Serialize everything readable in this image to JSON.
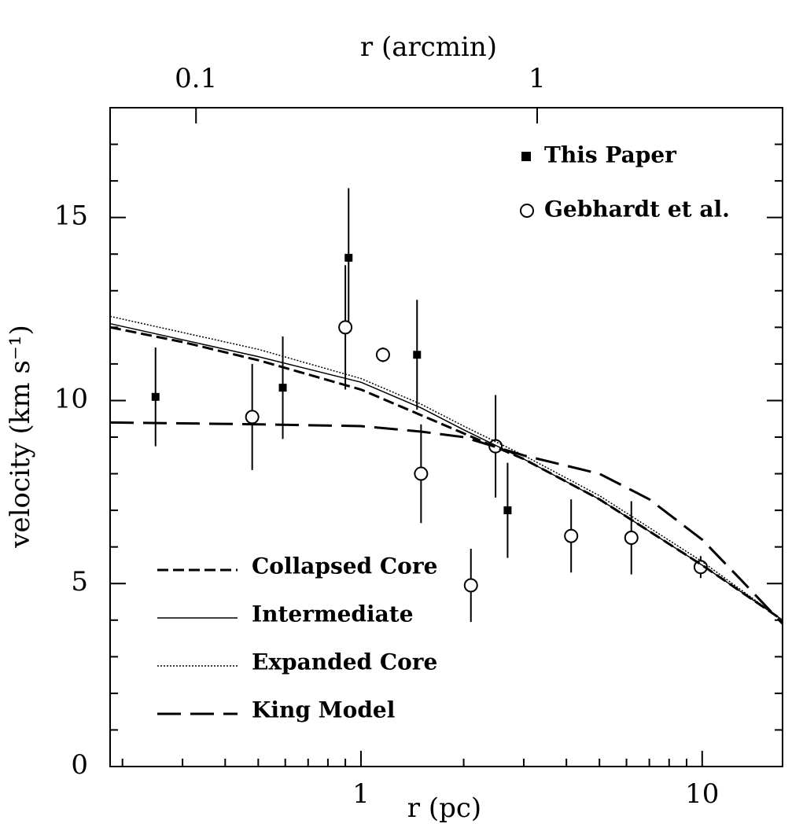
{
  "chart_data": {
    "type": "scatter",
    "x_label": "r (pc)",
    "x2_label": "r (arcmin)",
    "y_label": "velocity (km s⁻¹)",
    "xlim": [
      0.184,
      17.2
    ],
    "xscale": "log",
    "xticks": [
      1,
      10
    ],
    "xminorticks": [
      0.2,
      0.3,
      0.4,
      0.5,
      0.6,
      0.7,
      0.8,
      0.9,
      2,
      3,
      4,
      5,
      6,
      7,
      8,
      9
    ],
    "x2lim": [
      0.056,
      5.24
    ],
    "x2ticks": [
      0.1,
      1
    ],
    "ylim": [
      0,
      18
    ],
    "yticks": [
      0,
      5,
      10,
      15
    ],
    "yminorticks": [
      1,
      2,
      3,
      4,
      6,
      7,
      8,
      9,
      11,
      12,
      13,
      14,
      16,
      17
    ],
    "series": [
      {
        "name": "This Paper",
        "kind": "points",
        "marker": "square",
        "color": "#000",
        "x": [
          0.25,
          0.59,
          0.92,
          1.46,
          2.69
        ],
        "values": [
          10.1,
          10.35,
          13.9,
          11.25,
          7.0
        ],
        "errors": [
          1.35,
          1.4,
          1.9,
          1.5,
          1.3
        ]
      },
      {
        "name": "Gebhardt et al.",
        "kind": "points",
        "marker": "circle",
        "color": "#000",
        "x": [
          0.48,
          0.9,
          1.16,
          1.5,
          2.1,
          2.48,
          4.13,
          6.2,
          9.9
        ],
        "values": [
          9.55,
          12.0,
          11.25,
          8.0,
          4.95,
          8.75,
          6.3,
          6.25,
          5.45
        ],
        "errors": [
          1.45,
          1.7,
          0.2,
          1.35,
          1.0,
          1.4,
          1.0,
          1.0,
          0.3
        ]
      },
      {
        "name": "Collapsed Core",
        "kind": "line",
        "dash": "14 6",
        "width": 3,
        "color": "#000",
        "x": [
          0.184,
          0.3,
          0.5,
          1,
          1.5,
          2,
          3,
          5,
          10,
          17.2
        ],
        "values": [
          12.0,
          11.6,
          11.1,
          10.3,
          9.6,
          9.1,
          8.4,
          7.3,
          5.5,
          4.0
        ]
      },
      {
        "name": "Intermediate",
        "kind": "line",
        "dash": "none",
        "width": 1.5,
        "color": "#000",
        "x": [
          0.184,
          0.5,
          1,
          1.5,
          2,
          3,
          5,
          10,
          17.2
        ],
        "values": [
          12.1,
          11.2,
          10.5,
          9.8,
          9.2,
          8.4,
          7.3,
          5.5,
          4.0
        ]
      },
      {
        "name": "Expanded Core",
        "kind": "line",
        "dash": "2 2",
        "width": 1.5,
        "color": "#000",
        "x": [
          0.184,
          0.5,
          1,
          1.5,
          2,
          3,
          5,
          10,
          17.2
        ],
        "values": [
          12.3,
          11.4,
          10.6,
          9.9,
          9.3,
          8.5,
          7.4,
          5.6,
          4.0
        ]
      },
      {
        "name": "King Model",
        "kind": "line",
        "dash": "30 12",
        "width": 3,
        "color": "#000",
        "x": [
          0.184,
          0.5,
          1,
          1.5,
          2,
          3,
          5,
          7,
          10,
          13,
          17.2
        ],
        "values": [
          9.4,
          9.35,
          9.3,
          9.15,
          9.0,
          8.5,
          8.0,
          7.3,
          6.2,
          5.1,
          3.9
        ]
      }
    ]
  }
}
